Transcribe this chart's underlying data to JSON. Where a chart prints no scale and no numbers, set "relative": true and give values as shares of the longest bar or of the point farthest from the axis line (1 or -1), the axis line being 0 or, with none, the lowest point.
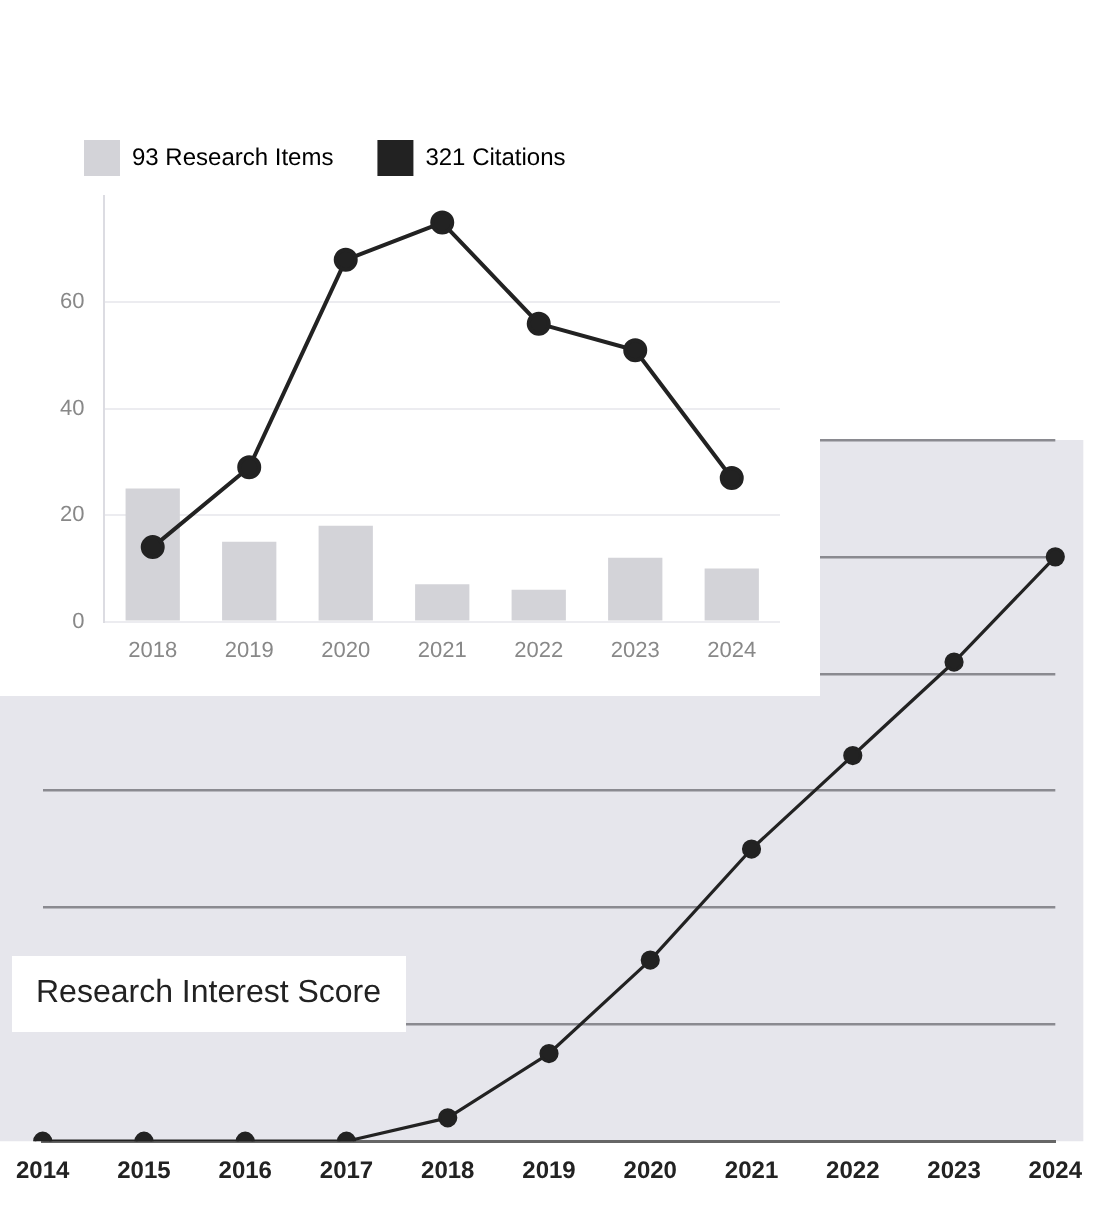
{
  "chart_data": [
    {
      "type": "bar",
      "categories": [
        "2018",
        "2019",
        "2020",
        "2021",
        "2022",
        "2023",
        "2024"
      ],
      "series": [
        {
          "name": "93 Research Items",
          "color": "#d3d3d8",
          "values": [
            25,
            15,
            18,
            7,
            6,
            12,
            10
          ]
        },
        {
          "name": "321 Citations",
          "type": "line",
          "color": "#222222",
          "values": [
            14,
            29,
            68,
            75,
            56,
            51,
            27
          ]
        }
      ],
      "ylim": [
        0,
        80
      ],
      "yticks": [
        0,
        20,
        40,
        60
      ],
      "grid": "y",
      "legend": "top left",
      "marker": "circle"
    },
    {
      "type": "line",
      "title": "Research Interest Score",
      "categories": [
        "2014",
        "2015",
        "2016",
        "2017",
        "2018",
        "2019",
        "2020",
        "2021",
        "2022",
        "2023",
        "2024"
      ],
      "series": [
        {
          "color": "#222222",
          "values": [
            0,
            0,
            0,
            0,
            0.04,
            0.15,
            0.31,
            0.5,
            0.66,
            0.82,
            1
          ]
        }
      ],
      "relative": true,
      "grid": "y",
      "marker": "circle"
    }
  ]
}
